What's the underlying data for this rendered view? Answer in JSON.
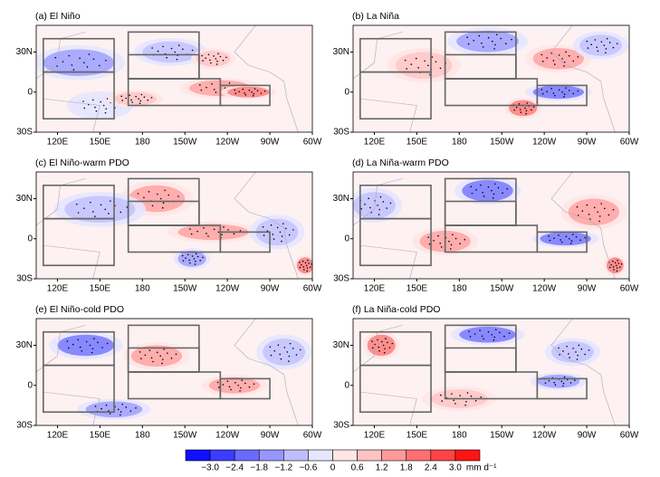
{
  "panels": [
    {
      "title": "(a) El Niño"
    },
    {
      "title": "(b) La Niña"
    },
    {
      "title": "(c) El Niño-warm PDO"
    },
    {
      "title": "(d) La Niña-warm PDO"
    },
    {
      "title": "(e) El Niño-cold PDO"
    },
    {
      "title": "(f) La Niña-cold PDO"
    }
  ],
  "x_ticks": [
    "120E",
    "150E",
    "180",
    "150W",
    "120W",
    "90W",
    "60W"
  ],
  "y_ticks": [
    "30N",
    "0",
    "30S"
  ],
  "colorbar": {
    "labels": [
      "−3.0",
      "−2.4",
      "−1.8",
      "−1.2",
      "−0.6",
      "0",
      "0.6",
      "1.2",
      "1.8",
      "2.4",
      "3.0"
    ],
    "unit": "mm d⁻¹",
    "colors": [
      "#1010ff",
      "#3c3cff",
      "#6a6aff",
      "#9696ff",
      "#bebeff",
      "#e6e6ff",
      "#ffe6e6",
      "#ffc2c2",
      "#ff9a9a",
      "#ff7070",
      "#ff4444",
      "#ff1414"
    ]
  }
}
